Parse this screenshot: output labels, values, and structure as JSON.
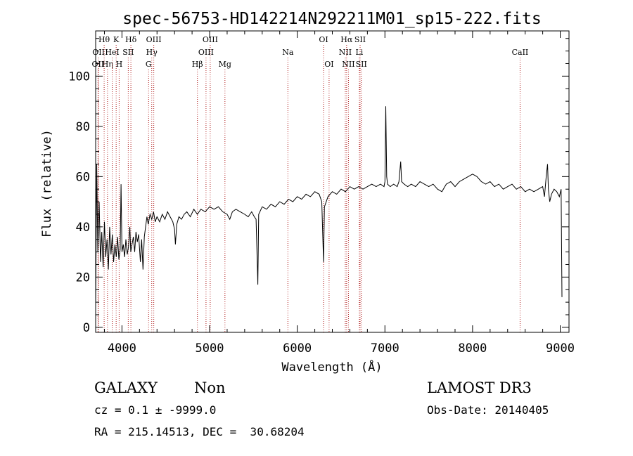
{
  "chart_data": {
    "type": "line",
    "title": "spec-56753-HD142214N292211M01_sp15-222.fits",
    "xlabel": "Wavelength (Å)",
    "ylabel": "Flux (relative)",
    "xlim": [
      3700,
      9100
    ],
    "ylim": [
      -2,
      118
    ],
    "xticks": [
      4000,
      5000,
      6000,
      7000,
      8000,
      9000
    ],
    "yticks": [
      0,
      20,
      40,
      60,
      80,
      100
    ],
    "line_color": "#000000",
    "marker_color": "#b22222",
    "series": [
      {
        "name": "spectrum",
        "points": [
          [
            3700,
            8
          ],
          [
            3712,
            65
          ],
          [
            3725,
            30
          ],
          [
            3740,
            50
          ],
          [
            3755,
            26
          ],
          [
            3770,
            38
          ],
          [
            3785,
            24
          ],
          [
            3800,
            42
          ],
          [
            3815,
            28
          ],
          [
            3830,
            35
          ],
          [
            3845,
            23
          ],
          [
            3860,
            40
          ],
          [
            3875,
            29
          ],
          [
            3890,
            37
          ],
          [
            3905,
            26
          ],
          [
            3920,
            33
          ],
          [
            3935,
            28
          ],
          [
            3950,
            36
          ],
          [
            3965,
            27
          ],
          [
            3980,
            31
          ],
          [
            3990,
            57
          ],
          [
            4000,
            30
          ],
          [
            4015,
            33
          ],
          [
            4030,
            28
          ],
          [
            4045,
            35
          ],
          [
            4060,
            29
          ],
          [
            4075,
            32
          ],
          [
            4090,
            40
          ],
          [
            4100,
            30
          ],
          [
            4115,
            33
          ],
          [
            4130,
            36
          ],
          [
            4145,
            30
          ],
          [
            4160,
            38
          ],
          [
            4175,
            34
          ],
          [
            4190,
            37
          ],
          [
            4210,
            26
          ],
          [
            4225,
            35
          ],
          [
            4240,
            23
          ],
          [
            4255,
            36
          ],
          [
            4270,
            40
          ],
          [
            4285,
            44
          ],
          [
            4300,
            41
          ],
          [
            4320,
            45
          ],
          [
            4340,
            43
          ],
          [
            4360,
            46
          ],
          [
            4380,
            42
          ],
          [
            4400,
            44
          ],
          [
            4430,
            42
          ],
          [
            4460,
            45
          ],
          [
            4490,
            43
          ],
          [
            4520,
            46
          ],
          [
            4550,
            44
          ],
          [
            4580,
            42
          ],
          [
            4600,
            39
          ],
          [
            4610,
            33
          ],
          [
            4625,
            41
          ],
          [
            4650,
            44
          ],
          [
            4680,
            43
          ],
          [
            4710,
            45
          ],
          [
            4740,
            46
          ],
          [
            4780,
            44
          ],
          [
            4820,
            47
          ],
          [
            4860,
            45
          ],
          [
            4900,
            47
          ],
          [
            4950,
            46
          ],
          [
            5000,
            48
          ],
          [
            5050,
            47
          ],
          [
            5100,
            48
          ],
          [
            5150,
            46
          ],
          [
            5200,
            45
          ],
          [
            5230,
            43
          ],
          [
            5260,
            46
          ],
          [
            5300,
            47
          ],
          [
            5350,
            46
          ],
          [
            5400,
            45
          ],
          [
            5440,
            44
          ],
          [
            5480,
            46
          ],
          [
            5510,
            44
          ],
          [
            5530,
            43
          ],
          [
            5550,
            17
          ],
          [
            5560,
            45
          ],
          [
            5600,
            48
          ],
          [
            5650,
            47
          ],
          [
            5700,
            49
          ],
          [
            5750,
            48
          ],
          [
            5800,
            50
          ],
          [
            5850,
            49
          ],
          [
            5900,
            51
          ],
          [
            5950,
            50
          ],
          [
            6000,
            52
          ],
          [
            6050,
            51
          ],
          [
            6100,
            53
          ],
          [
            6150,
            52
          ],
          [
            6200,
            54
          ],
          [
            6250,
            53
          ],
          [
            6280,
            50
          ],
          [
            6300,
            26
          ],
          [
            6310,
            48
          ],
          [
            6350,
            52
          ],
          [
            6400,
            54
          ],
          [
            6450,
            53
          ],
          [
            6500,
            55
          ],
          [
            6550,
            54
          ],
          [
            6600,
            56
          ],
          [
            6650,
            55
          ],
          [
            6700,
            56
          ],
          [
            6750,
            55
          ],
          [
            6800,
            56
          ],
          [
            6850,
            57
          ],
          [
            6900,
            56
          ],
          [
            6950,
            57
          ],
          [
            6990,
            56
          ],
          [
            7000,
            58
          ],
          [
            7010,
            88
          ],
          [
            7020,
            60
          ],
          [
            7030,
            57
          ],
          [
            7060,
            56
          ],
          [
            7100,
            57
          ],
          [
            7140,
            56
          ],
          [
            7160,
            58
          ],
          [
            7180,
            66
          ],
          [
            7190,
            58
          ],
          [
            7220,
            57
          ],
          [
            7260,
            56
          ],
          [
            7300,
            57
          ],
          [
            7350,
            56
          ],
          [
            7400,
            58
          ],
          [
            7450,
            57
          ],
          [
            7500,
            56
          ],
          [
            7550,
            57
          ],
          [
            7600,
            55
          ],
          [
            7650,
            54
          ],
          [
            7700,
            57
          ],
          [
            7750,
            58
          ],
          [
            7800,
            56
          ],
          [
            7850,
            58
          ],
          [
            7900,
            59
          ],
          [
            7950,
            60
          ],
          [
            8000,
            61
          ],
          [
            8050,
            60
          ],
          [
            8100,
            58
          ],
          [
            8150,
            57
          ],
          [
            8200,
            58
          ],
          [
            8250,
            56
          ],
          [
            8300,
            57
          ],
          [
            8350,
            55
          ],
          [
            8400,
            56
          ],
          [
            8450,
            57
          ],
          [
            8500,
            55
          ],
          [
            8550,
            56
          ],
          [
            8600,
            54
          ],
          [
            8650,
            55
          ],
          [
            8700,
            54
          ],
          [
            8750,
            55
          ],
          [
            8800,
            56
          ],
          [
            8820,
            52
          ],
          [
            8840,
            60
          ],
          [
            8855,
            65
          ],
          [
            8865,
            55
          ],
          [
            8880,
            50
          ],
          [
            8900,
            53
          ],
          [
            8930,
            55
          ],
          [
            8960,
            54
          ],
          [
            8990,
            52
          ],
          [
            9010,
            55
          ],
          [
            9020,
            12
          ]
        ]
      }
    ],
    "line_markers": [
      {
        "label": "OII",
        "x": 3727,
        "row": 2
      },
      {
        "label": "OII",
        "x": 3733,
        "row": 1
      },
      {
        "label": "Hθ",
        "x": 3797,
        "row": 0
      },
      {
        "label": "Hη",
        "x": 3835,
        "row": 2
      },
      {
        "label": "HeI",
        "x": 3889,
        "row": 1
      },
      {
        "label": "K",
        "x": 3934,
        "row": 0
      },
      {
        "label": "H",
        "x": 3968,
        "row": 2
      },
      {
        "label": "Hδ",
        "x": 4102,
        "row": 0
      },
      {
        "label": "SII",
        "x": 4072,
        "row": 1
      },
      {
        "label": "G",
        "x": 4304,
        "row": 2
      },
      {
        "label": "Hγ",
        "x": 4340,
        "row": 1
      },
      {
        "label": "OIII",
        "x": 4363,
        "row": 0
      },
      {
        "label": "Hβ",
        "x": 4861,
        "row": 2
      },
      {
        "label": "OIII",
        "x": 4959,
        "row": 1
      },
      {
        "label": "OIII",
        "x": 5007,
        "row": 0
      },
      {
        "label": "Mg",
        "x": 5175,
        "row": 2
      },
      {
        "label": "Na",
        "x": 5893,
        "row": 1
      },
      {
        "label": "OI",
        "x": 6300,
        "row": 0
      },
      {
        "label": "OI",
        "x": 6363,
        "row": 2
      },
      {
        "label": "NII",
        "x": 6548,
        "row": 1
      },
      {
        "label": "Hα",
        "x": 6563,
        "row": 0
      },
      {
        "label": "NII",
        "x": 6584,
        "row": 2
      },
      {
        "label": "SII",
        "x": 6717,
        "row": 0
      },
      {
        "label": "Li",
        "x": 6708,
        "row": 1
      },
      {
        "label": "SII",
        "x": 6731,
        "row": 2
      },
      {
        "label": "CaII",
        "x": 8542,
        "row": 1
      }
    ]
  },
  "info": {
    "class": "GALAXY",
    "subclass": "Non",
    "survey": "LAMOST DR3",
    "cz": "cz = 0.1 ± -9999.0",
    "obs_date": "Obs-Date: 20140405",
    "coords": "RA = 215.14513, DEC =  30.68204"
  }
}
